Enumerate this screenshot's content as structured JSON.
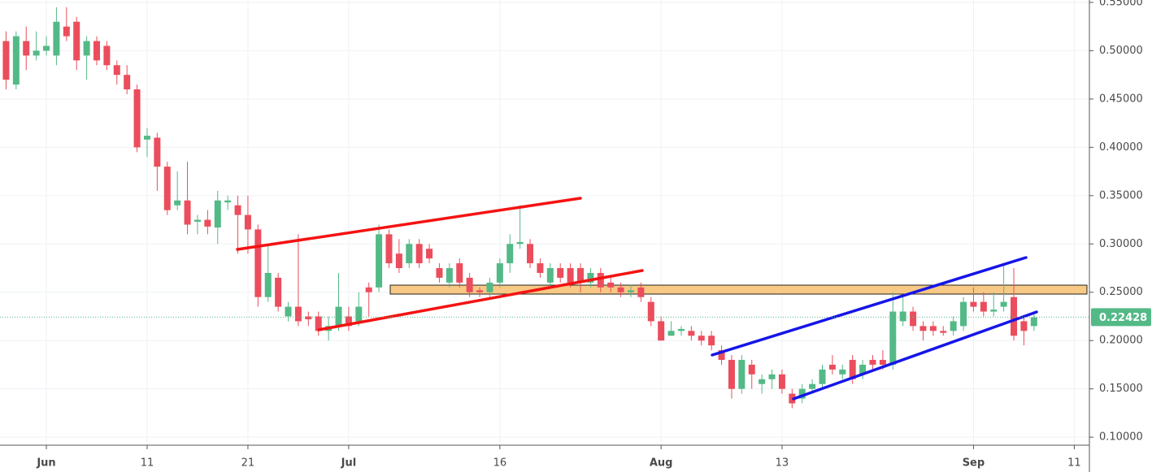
{
  "chart_data": {
    "type": "candlestick",
    "x": [
      -4,
      -3,
      -2,
      -1,
      0,
      1,
      2,
      3,
      4,
      5,
      6,
      7,
      8,
      9,
      10,
      11,
      12,
      13,
      14,
      15,
      16,
      17,
      18,
      19,
      20,
      21,
      22,
      23,
      24,
      25,
      26,
      27,
      28,
      29,
      30,
      31,
      32,
      33,
      34,
      35,
      36,
      37,
      38,
      39,
      40,
      41,
      42,
      43,
      44,
      45,
      46,
      47,
      48,
      49,
      50,
      51,
      52,
      53,
      54,
      55,
      56,
      57,
      58,
      59,
      60,
      61,
      62,
      63,
      64,
      65,
      66,
      67,
      68,
      69,
      70,
      71,
      72,
      73,
      74,
      75,
      76,
      77,
      78,
      79,
      80,
      81,
      82,
      83,
      84,
      85,
      86,
      87,
      88,
      89,
      90,
      91,
      92,
      93,
      94,
      95,
      96,
      97,
      98
    ],
    "open": [
      0.51,
      0.465,
      0.51,
      0.495,
      0.5,
      0.495,
      0.525,
      0.53,
      0.495,
      0.51,
      0.505,
      0.485,
      0.475,
      0.46,
      0.408,
      0.41,
      0.38,
      0.34,
      0.345,
      0.323,
      0.325,
      0.317,
      0.343,
      0.34,
      0.33,
      0.315,
      0.245,
      0.265,
      0.225,
      0.235,
      0.225,
      0.225,
      0.21,
      0.215,
      0.225,
      0.22,
      0.255,
      0.255,
      0.31,
      0.29,
      0.28,
      0.3,
      0.295,
      0.275,
      0.26,
      0.28,
      0.265,
      0.252,
      0.25,
      0.26,
      0.28,
      0.3,
      0.3,
      0.28,
      0.26,
      0.275,
      0.275,
      0.275,
      0.26,
      0.27,
      0.26,
      0.255,
      0.25,
      0.255,
      0.24,
      0.22,
      0.205,
      0.21,
      0.21,
      0.205,
      0.205,
      0.19,
      0.18,
      0.15,
      0.175,
      0.155,
      0.16,
      0.165,
      0.145,
      0.14,
      0.15,
      0.155,
      0.175,
      0.165,
      0.18,
      0.165,
      0.18,
      0.18,
      0.175,
      0.22,
      0.23,
      0.215,
      0.215,
      0.21,
      0.21,
      0.215,
      0.24,
      0.24,
      0.23,
      0.235,
      0.245,
      0.22,
      0.215
    ],
    "high": [
      0.52,
      0.52,
      0.525,
      0.52,
      0.515,
      0.545,
      0.545,
      0.535,
      0.515,
      0.515,
      0.51,
      0.49,
      0.485,
      0.465,
      0.42,
      0.415,
      0.385,
      0.375,
      0.385,
      0.33,
      0.335,
      0.355,
      0.35,
      0.35,
      0.35,
      0.32,
      0.3,
      0.27,
      0.24,
      0.31,
      0.23,
      0.23,
      0.225,
      0.27,
      0.235,
      0.25,
      0.26,
      0.32,
      0.315,
      0.305,
      0.305,
      0.305,
      0.3,
      0.28,
      0.28,
      0.285,
      0.27,
      0.255,
      0.265,
      0.285,
      0.31,
      0.34,
      0.305,
      0.285,
      0.28,
      0.28,
      0.28,
      0.28,
      0.275,
      0.275,
      0.265,
      0.26,
      0.258,
      0.26,
      0.245,
      0.225,
      0.22,
      0.215,
      0.215,
      0.21,
      0.21,
      0.195,
      0.185,
      0.185,
      0.18,
      0.165,
      0.17,
      0.17,
      0.15,
      0.155,
      0.16,
      0.175,
      0.185,
      0.175,
      0.185,
      0.18,
      0.185,
      0.19,
      0.25,
      0.245,
      0.235,
      0.22,
      0.22,
      0.215,
      0.225,
      0.245,
      0.255,
      0.25,
      0.25,
      0.28,
      0.275,
      0.225,
      0.23
    ],
    "low": [
      0.46,
      0.46,
      0.48,
      0.49,
      0.495,
      0.485,
      0.51,
      0.48,
      0.47,
      0.485,
      0.48,
      0.465,
      0.455,
      0.395,
      0.39,
      0.355,
      0.33,
      0.335,
      0.31,
      0.31,
      0.31,
      0.3,
      0.335,
      0.29,
      0.29,
      0.235,
      0.24,
      0.23,
      0.22,
      0.215,
      0.215,
      0.205,
      0.2,
      0.21,
      0.21,
      0.215,
      0.225,
      0.25,
      0.275,
      0.27,
      0.275,
      0.275,
      0.28,
      0.26,
      0.255,
      0.255,
      0.245,
      0.245,
      0.245,
      0.255,
      0.27,
      0.295,
      0.275,
      0.265,
      0.255,
      0.26,
      0.255,
      0.25,
      0.255,
      0.25,
      0.25,
      0.245,
      0.245,
      0.24,
      0.215,
      0.2,
      0.205,
      0.205,
      0.2,
      0.195,
      0.19,
      0.175,
      0.14,
      0.145,
      0.15,
      0.145,
      0.15,
      0.145,
      0.13,
      0.135,
      0.145,
      0.15,
      0.165,
      0.16,
      0.155,
      0.16,
      0.17,
      0.17,
      0.17,
      0.215,
      0.21,
      0.2,
      0.205,
      0.205,
      0.205,
      0.21,
      0.23,
      0.225,
      0.225,
      0.23,
      0.2,
      0.195,
      0.21
    ],
    "close": [
      0.47,
      0.515,
      0.495,
      0.5,
      0.505,
      0.53,
      0.515,
      0.49,
      0.51,
      0.49,
      0.485,
      0.475,
      0.46,
      0.4,
      0.412,
      0.38,
      0.335,
      0.345,
      0.32,
      0.325,
      0.318,
      0.345,
      0.345,
      0.33,
      0.315,
      0.245,
      0.27,
      0.235,
      0.235,
      0.22,
      0.222,
      0.21,
      0.215,
      0.235,
      0.215,
      0.235,
      0.25,
      0.31,
      0.28,
      0.275,
      0.3,
      0.28,
      0.285,
      0.265,
      0.275,
      0.26,
      0.25,
      0.25,
      0.26,
      0.28,
      0.3,
      0.302,
      0.28,
      0.27,
      0.275,
      0.265,
      0.26,
      0.26,
      0.27,
      0.255,
      0.255,
      0.25,
      0.252,
      0.245,
      0.22,
      0.2,
      0.21,
      0.212,
      0.205,
      0.2,
      0.195,
      0.18,
      0.15,
      0.18,
      0.165,
      0.16,
      0.165,
      0.15,
      0.135,
      0.15,
      0.155,
      0.17,
      0.17,
      0.17,
      0.16,
      0.175,
      0.175,
      0.175,
      0.23,
      0.23,
      0.215,
      0.21,
      0.21,
      0.208,
      0.22,
      0.24,
      0.235,
      0.23,
      0.232,
      0.24,
      0.205,
      0.21,
      0.224
    ],
    "up_color": "#53b987",
    "down_color": "#eb4d5c",
    "last_price": 0.22428,
    "xlim": [
      -4.6,
      103.5
    ],
    "ylim": [
      0.0917,
      0.5525
    ],
    "xticks": [
      {
        "value": 0,
        "label": "Jun"
      },
      {
        "value": 10,
        "label": "11"
      },
      {
        "value": 20,
        "label": "21"
      },
      {
        "value": 30,
        "label": "Jul"
      },
      {
        "value": 45,
        "label": "16"
      },
      {
        "value": 61,
        "label": "Aug"
      },
      {
        "value": 73,
        "label": "13"
      },
      {
        "value": 92,
        "label": "Sep"
      },
      {
        "value": 102,
        "label": "11"
      }
    ],
    "yticks": [
      {
        "value": 0.1,
        "label": "0.10000"
      },
      {
        "value": 0.15,
        "label": "0.15000"
      },
      {
        "value": 0.2,
        "label": "0.20000"
      },
      {
        "value": 0.25,
        "label": "0.25000"
      },
      {
        "value": 0.3,
        "label": "0.30000"
      },
      {
        "value": 0.35,
        "label": "0.35000"
      },
      {
        "value": 0.4,
        "label": "0.40000"
      },
      {
        "value": 0.45,
        "label": "0.45000"
      },
      {
        "value": 0.5,
        "label": "0.50000"
      },
      {
        "value": 0.55,
        "label": "0.55000"
      }
    ],
    "grid": true
  }
}
